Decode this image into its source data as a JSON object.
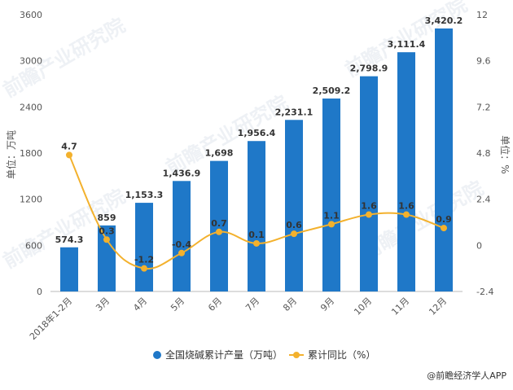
{
  "chart_data": {
    "type": "bar",
    "categories": [
      "2018年1-2月",
      "3月",
      "4月",
      "5月",
      "6月",
      "7月",
      "8月",
      "9月",
      "10月",
      "11月",
      "12月"
    ],
    "series": [
      {
        "name": "全国烧碱累计产量（万吨）",
        "type": "bar",
        "axis": "left",
        "values": [
          574.3,
          859,
          1153.3,
          1436.9,
          1698,
          1956.4,
          2231.1,
          2509.2,
          2798.9,
          3111.4,
          3420.2
        ],
        "labels": [
          "574.3",
          "859",
          "1,153.3",
          "1,436.9",
          "1,698",
          "1,956.4",
          "2,231.1",
          "2,509.2",
          "2,798.9",
          "3,111.4",
          "3,420.2"
        ]
      },
      {
        "name": "累计同比（%）",
        "type": "line",
        "axis": "right",
        "values": [
          4.7,
          0.3,
          -1.2,
          -0.4,
          0.7,
          0.1,
          0.6,
          1.1,
          1.6,
          1.6,
          0.9
        ],
        "labels": [
          "4.7",
          "0.3",
          "-1.2",
          "-0.4",
          "0.7",
          "0.1",
          "0.6",
          "1.1",
          "1.6",
          "1.6",
          "0.9"
        ]
      }
    ],
    "ylabel_left": "单位：万吨",
    "ylabel_right": "单位：%",
    "ylim_left": [
      0,
      3600
    ],
    "ylim_right": [
      -2.4,
      12
    ],
    "yticks_left": [
      "0",
      "600",
      "1200",
      "1800",
      "2400",
      "3000",
      "3600"
    ],
    "yticks_right": [
      "-2.4",
      "0",
      "2.4",
      "4.8",
      "7.2",
      "9.6",
      "12"
    ],
    "grid": false,
    "legend_position": "bottom",
    "colors": {
      "bar": "#1f78c8",
      "line": "#f3b12d"
    }
  },
  "watermark": "前瞻产业研究院",
  "source": "@前瞻经济学人APP"
}
